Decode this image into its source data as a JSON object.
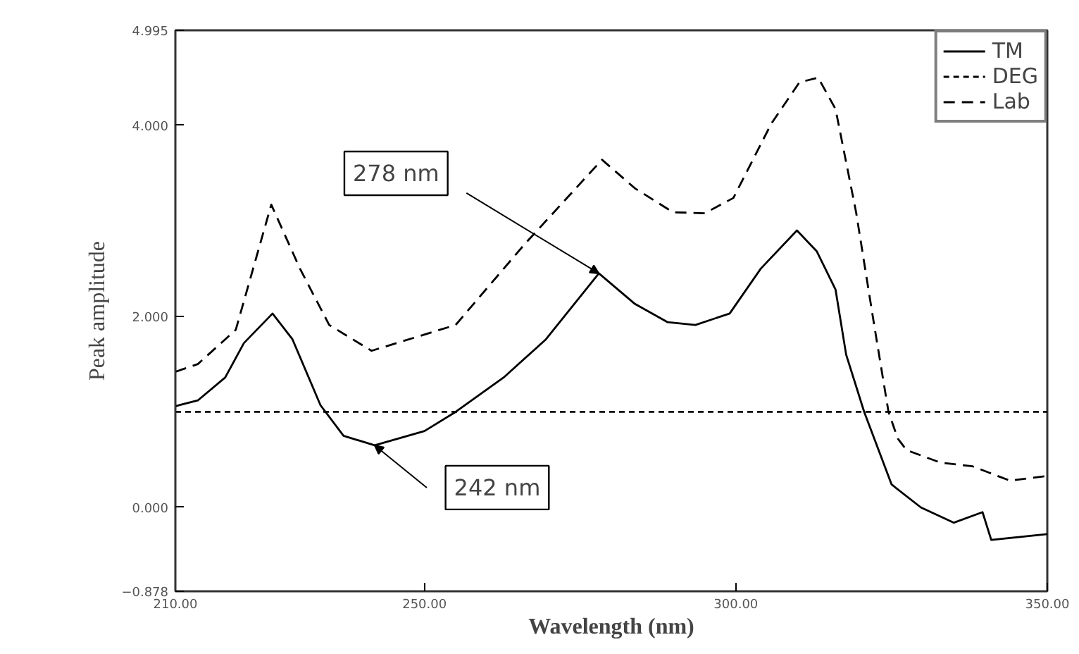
{
  "chart_data": {
    "type": "line",
    "xlabel": "Wavelength (nm)",
    "ylabel": "Peak amplitude",
    "xlim": [
      210,
      350
    ],
    "ylim": [
      -0.878,
      4.995
    ],
    "xticks": [
      {
        "value": 210,
        "label": "210.00"
      },
      {
        "value": 250,
        "label": "250.00"
      },
      {
        "value": 300,
        "label": "300.00"
      },
      {
        "value": 350,
        "label": "350.00"
      }
    ],
    "yticks": [
      -0.878,
      {
        "value": 0,
        "label": "0.000"
      },
      {
        "value": 2,
        "label": "2.000"
      },
      {
        "value": 4,
        "label": "4.000"
      },
      4.995
    ],
    "grid": false,
    "legend": "top right",
    "series": [
      {
        "name": "TM",
        "color": "#000000",
        "line_style": "solid",
        "x": [
          210,
          213.6,
          218,
          221,
          225.6,
          228.8,
          233.3,
          237,
          242,
          250,
          255,
          262.7,
          269.5,
          278,
          283.8,
          289,
          293.5,
          299,
          304,
          309.8,
          313,
          316,
          317.7,
          320.6,
          325,
          329.7,
          335,
          339.6,
          341,
          350
        ],
        "values": [
          1.06,
          1.12,
          1.36,
          1.72,
          2.03,
          1.76,
          1.07,
          0.75,
          0.65,
          0.8,
          1.0,
          1.36,
          1.76,
          2.45,
          2.13,
          1.94,
          1.91,
          2.03,
          2.5,
          2.9,
          2.68,
          2.28,
          1.6,
          1.0,
          0.24,
          0.0,
          -0.16,
          -0.05,
          -0.34,
          -0.28
        ]
      },
      {
        "name": "DEG",
        "color": "#000000",
        "line_style": "dotted",
        "x": [
          210,
          350
        ],
        "values": [
          1.0,
          1.0
        ]
      },
      {
        "name": "Lab",
        "color": "#000000",
        "line_style": "dashed",
        "x": [
          210,
          213.6,
          219.7,
          225.4,
          230,
          234.7,
          241.5,
          255,
          266,
          278.5,
          283.8,
          289.9,
          295,
          299.6,
          305.7,
          310.2,
          313.2,
          316,
          319.3,
          322.2,
          324.5,
          326,
          327.4,
          332.8,
          338,
          344,
          350
        ],
        "values": [
          1.42,
          1.5,
          1.86,
          3.17,
          2.5,
          1.91,
          1.64,
          1.91,
          2.75,
          3.64,
          3.34,
          3.09,
          3.08,
          3.24,
          4.02,
          4.45,
          4.5,
          4.17,
          3.09,
          1.91,
          1.0,
          0.72,
          0.6,
          0.47,
          0.43,
          0.28,
          0.33
        ]
      }
    ],
    "annotations": [
      {
        "text": "278 nm",
        "x": 278,
        "y": 2.45
      },
      {
        "text": "242 nm",
        "x": 242,
        "y": 0.65
      }
    ]
  }
}
